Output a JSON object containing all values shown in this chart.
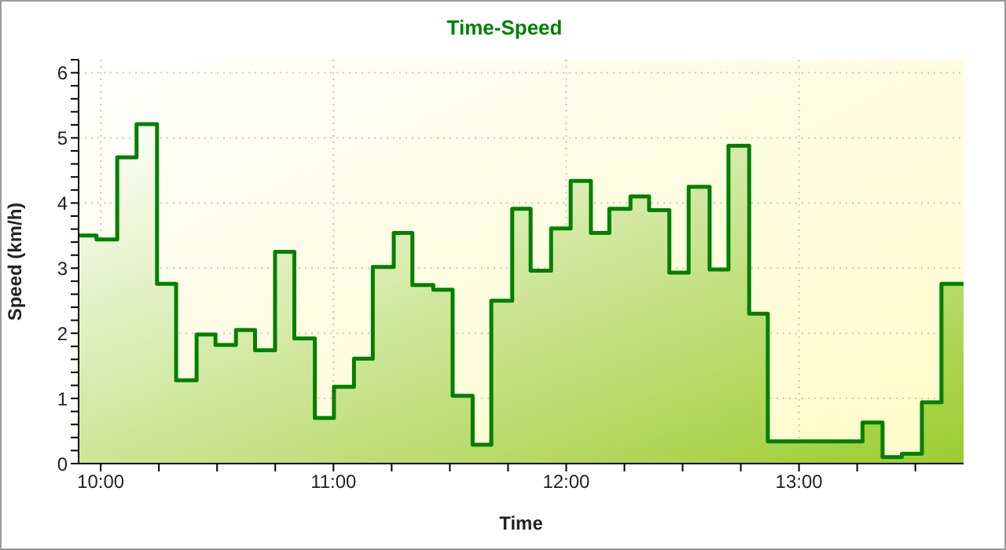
{
  "chart_data": {
    "type": "area",
    "title": "Time-Speed",
    "xlabel": "Time",
    "ylabel": "Speed (km/h)",
    "x": [
      9.905,
      9.982,
      9.982,
      10.071,
      10.071,
      10.154,
      10.154,
      10.242,
      10.242,
      10.324,
      10.324,
      10.412,
      10.412,
      10.493,
      10.493,
      10.581,
      10.581,
      10.663,
      10.663,
      10.749,
      10.749,
      10.832,
      10.832,
      10.92,
      10.92,
      11.002,
      11.002,
      11.088,
      11.088,
      11.169,
      11.169,
      11.259,
      11.259,
      11.339,
      11.339,
      11.429,
      11.429,
      11.512,
      11.512,
      11.598,
      11.598,
      11.678,
      11.678,
      11.768,
      11.768,
      11.847,
      11.847,
      11.935,
      11.935,
      12.019,
      12.019,
      12.106,
      12.106,
      12.185,
      12.185,
      12.276,
      12.276,
      12.356,
      12.356,
      12.443,
      12.443,
      12.526,
      12.526,
      12.616,
      12.616,
      12.697,
      12.697,
      12.786,
      12.786,
      12.866,
      12.866,
      13.273,
      13.273,
      13.359,
      13.359,
      13.442,
      13.442,
      13.528,
      13.528,
      13.612,
      13.612,
      13.707
    ],
    "series": [
      {
        "color": "#008000",
        "values": [
          3.5,
          3.5,
          3.44,
          3.44,
          4.7,
          4.7,
          5.21,
          5.21,
          2.76,
          2.76,
          1.28,
          1.28,
          1.98,
          1.98,
          1.82,
          1.82,
          2.05,
          2.05,
          1.74,
          1.74,
          3.25,
          3.25,
          1.92,
          1.92,
          0.7,
          0.7,
          1.18,
          1.18,
          1.61,
          1.61,
          3.02,
          3.02,
          3.54,
          3.54,
          2.74,
          2.74,
          2.67,
          2.67,
          1.04,
          1.04,
          0.29,
          0.29,
          2.5,
          2.5,
          3.91,
          3.91,
          2.96,
          2.96,
          3.61,
          3.61,
          4.34,
          4.34,
          3.54,
          3.54,
          3.91,
          3.91,
          4.1,
          4.1,
          3.89,
          3.89,
          2.93,
          2.93,
          4.25,
          4.25,
          2.98,
          2.98,
          4.88,
          4.88,
          2.3,
          2.3,
          0.34,
          0.34,
          0.63,
          0.63,
          0.1,
          0.1,
          0.15,
          0.15,
          0.94,
          0.94,
          2.76,
          2.76
        ]
      }
    ],
    "xlim": [
      9.905,
      13.707
    ],
    "xticks": [
      {
        "value": 10,
        "label": "10:00"
      },
      {
        "value": 10.25,
        "label": null
      },
      {
        "value": 10.5,
        "label": null
      },
      {
        "value": 10.75,
        "label": null
      },
      {
        "value": 11,
        "label": "11:00"
      },
      {
        "value": 11.25,
        "label": null
      },
      {
        "value": 11.5,
        "label": null
      },
      {
        "value": 11.75,
        "label": null
      },
      {
        "value": 12,
        "label": "12:00"
      },
      {
        "value": 12.25,
        "label": null
      },
      {
        "value": 12.5,
        "label": null
      },
      {
        "value": 12.75,
        "label": null
      },
      {
        "value": 13,
        "label": "13:00"
      },
      {
        "value": 13.25,
        "label": null
      },
      {
        "value": 13.5,
        "label": null
      }
    ],
    "ylim": [
      0,
      6.2
    ],
    "yticks": [
      0,
      {
        "value": 0.2,
        "label": null
      },
      {
        "value": 0.4,
        "label": null
      },
      {
        "value": 0.6,
        "label": null
      },
      {
        "value": 0.8,
        "label": null
      },
      1,
      {
        "value": 1.2,
        "label": null
      },
      {
        "value": 1.4,
        "label": null
      },
      {
        "value": 1.6,
        "label": null
      },
      {
        "value": 1.8,
        "label": null
      },
      2,
      {
        "value": 2.2,
        "label": null
      },
      {
        "value": 2.4,
        "label": null
      },
      {
        "value": 2.6,
        "label": null
      },
      {
        "value": 2.8,
        "label": null
      },
      3,
      {
        "value": 3.2,
        "label": null
      },
      {
        "value": 3.4,
        "label": null
      },
      {
        "value": 3.6,
        "label": null
      },
      {
        "value": 3.8,
        "label": null
      },
      4,
      {
        "value": 4.2,
        "label": null
      },
      {
        "value": 4.4,
        "label": null
      },
      {
        "value": 4.6,
        "label": null
      },
      {
        "value": 4.8,
        "label": null
      },
      5,
      {
        "value": 5.2,
        "label": null
      },
      {
        "value": 5.4,
        "label": null
      },
      {
        "value": 5.6,
        "label": null
      },
      {
        "value": 5.8,
        "label": null
      },
      6,
      {
        "value": 6.2,
        "label": null
      }
    ],
    "grid": true,
    "marker": "none",
    "line_style": "solid"
  }
}
